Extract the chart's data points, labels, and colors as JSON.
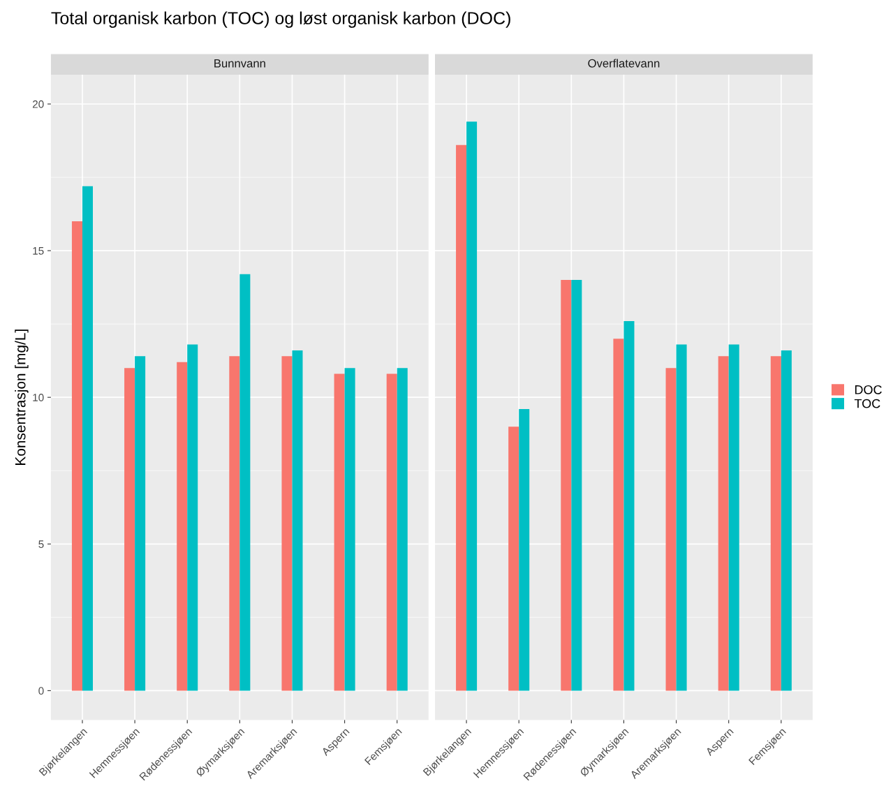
{
  "chart_data": [
    {
      "type": "bar",
      "title": "Total organisk karbon (TOC) og løst organisk karbon (DOC)",
      "subtitle": "Bunnvann",
      "ylabel": "Konsentrasjon [mg/L]",
      "categories": [
        "Bjørkelangen",
        "Hemnessjøen",
        "Rødenessjøen",
        "Øymarksjøen",
        "Aremarksjøen",
        "Aspern",
        "Femsjøen"
      ],
      "series": [
        {
          "color": "#f8766d",
          "values": [
            16.0,
            11.0,
            11.2,
            11.4,
            11.4,
            10.8,
            10.8
          ]
        },
        {
          "color": "#00bfc4",
          "values": [
            17.2,
            11.4,
            11.8,
            14.2,
            11.6,
            11.0,
            11.0
          ]
        }
      ],
      "ylim": [
        -1,
        21
      ],
      "yticks": [
        0,
        5,
        10,
        15,
        20
      ],
      "grid": true
    },
    {
      "type": "bar",
      "subtitle": "Overflatevann",
      "categories": [
        "Bjørkelangen",
        "Hemnessjøen",
        "Rødenessjøen",
        "Øymarksjøen",
        "Aremarksjøen",
        "Aspern",
        "Femsjøen"
      ],
      "series": [
        {
          "name": "DOC",
          "color": "#f8766d",
          "values": [
            18.6,
            9.0,
            14.0,
            12.0,
            11.0,
            11.4,
            11.4
          ]
        },
        {
          "name": "TOC",
          "color": "#00bfc4",
          "values": [
            19.4,
            9.6,
            14.0,
            12.6,
            11.8,
            11.8,
            11.6
          ]
        }
      ],
      "ylim": [
        -1,
        21
      ],
      "yticks": [
        0,
        5,
        10,
        15,
        20
      ],
      "grid": true,
      "tick_labels": "x",
      "legend": "right"
    }
  ]
}
